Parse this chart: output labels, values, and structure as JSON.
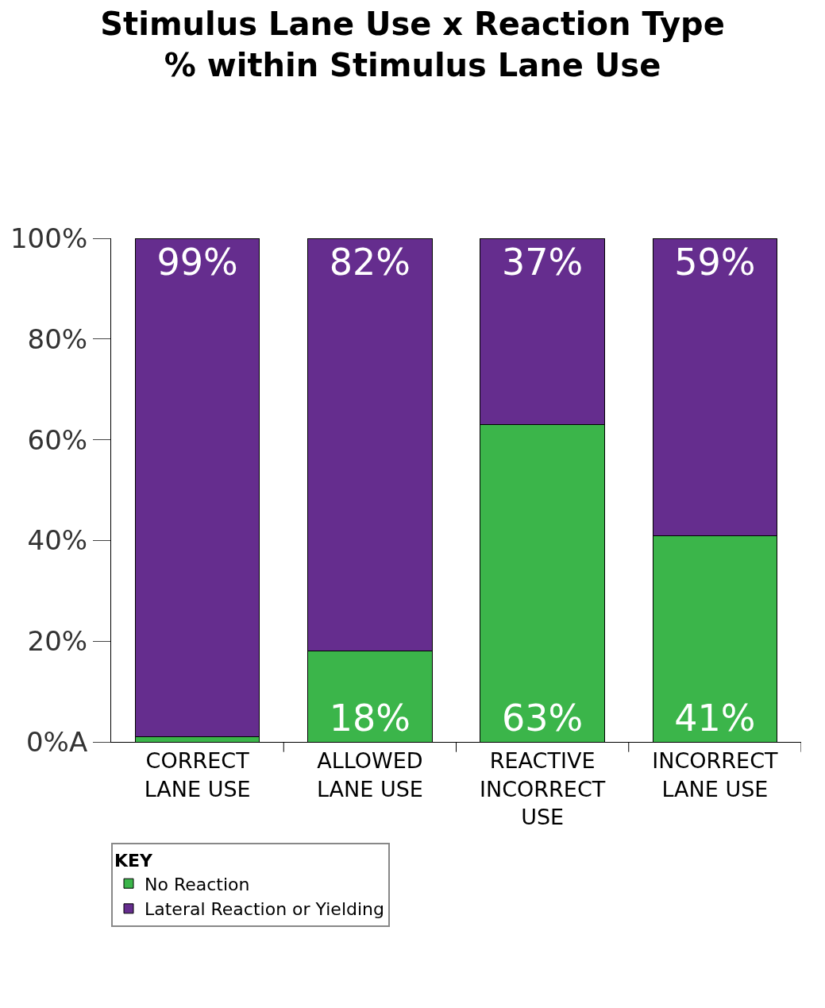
{
  "chart_data": {
    "type": "bar",
    "title": "Stimulus Lane Use x Reaction Type",
    "subtitle": "% within Stimulus Lane Use",
    "categories": [
      "CORRECT LANE USE",
      "ALLOWED LANE USE",
      "REACTIVE INCORRECT USE",
      "INCORRECT LANE USE"
    ],
    "series": [
      {
        "name": "No Reaction",
        "color": "#3bb54a",
        "values": [
          1,
          18,
          63,
          41
        ],
        "value_labels": [
          null,
          "18%",
          "63%",
          "41%"
        ]
      },
      {
        "name": "Lateral Reaction or Yielding",
        "color": "#652d8e",
        "values": [
          99,
          82,
          37,
          59
        ],
        "value_labels": [
          "99%",
          "82%",
          "37%",
          "59%"
        ]
      }
    ],
    "stacked": true,
    "ylim": [
      0,
      100
    ],
    "yticks": [
      {
        "value": 0,
        "label": "0%A"
      },
      {
        "value": 20,
        "label": "20%"
      },
      {
        "value": 40,
        "label": "40%"
      },
      {
        "value": 60,
        "label": "60%"
      },
      {
        "value": 80,
        "label": "80%"
      },
      {
        "value": 100,
        "label": "100%"
      }
    ],
    "legend": "bottom left",
    "legend_title": "KEY",
    "grid": false
  }
}
